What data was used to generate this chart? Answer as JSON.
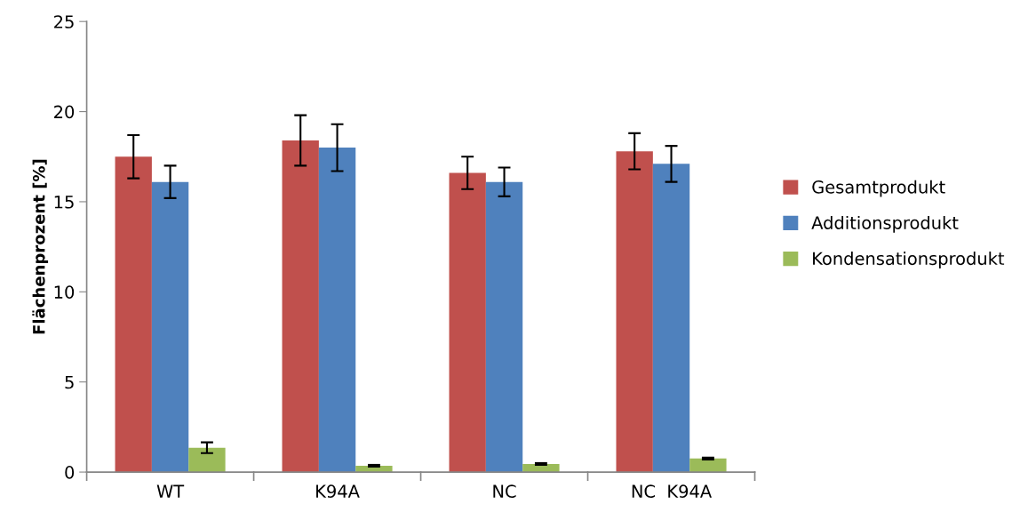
{
  "chart_data": {
    "type": "bar",
    "ylabel": "Flächenprozent [%]",
    "categories": [
      "WT",
      "K94A",
      "NC",
      "NC  K94A"
    ],
    "series": [
      {
        "name": "Gesamtprodukt",
        "color": "#c0504d",
        "values": [
          17.5,
          18.4,
          16.6,
          17.8
        ],
        "errors": [
          1.2,
          1.4,
          0.9,
          1.0
        ]
      },
      {
        "name": "Additionsprodukt",
        "color": "#4f81bd",
        "values": [
          16.1,
          18.0,
          16.1,
          17.1
        ],
        "errors": [
          0.9,
          1.3,
          0.8,
          1.0
        ]
      },
      {
        "name": "Kondensationsprodukt",
        "color": "#9bbb59",
        "values": [
          1.35,
          0.35,
          0.45,
          0.75
        ],
        "errors": [
          0.3,
          0.05,
          0.05,
          0.05
        ]
      }
    ],
    "ylim": [
      0,
      25
    ],
    "yticks": [
      0,
      5,
      10,
      15,
      20,
      25
    ],
    "grid": false,
    "legend": "right"
  }
}
